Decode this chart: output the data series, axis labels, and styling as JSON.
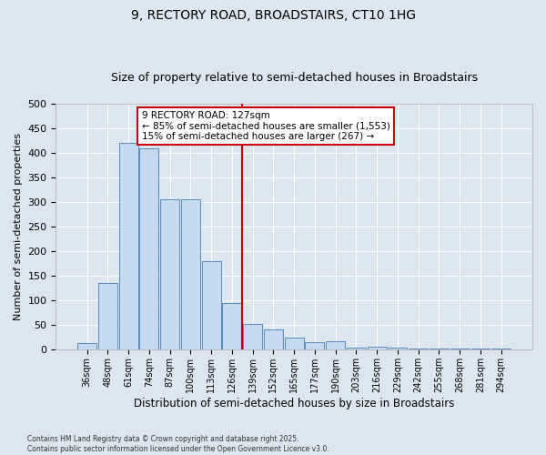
{
  "title": "9, RECTORY ROAD, BROADSTAIRS, CT10 1HG",
  "subtitle": "Size of property relative to semi-detached houses in Broadstairs",
  "xlabel": "Distribution of semi-detached houses by size in Broadstairs",
  "ylabel": "Number of semi-detached properties",
  "categories": [
    "36sqm",
    "48sqm",
    "61sqm",
    "74sqm",
    "87sqm",
    "100sqm",
    "113sqm",
    "126sqm",
    "139sqm",
    "152sqm",
    "165sqm",
    "177sqm",
    "190sqm",
    "203sqm",
    "216sqm",
    "229sqm",
    "242sqm",
    "255sqm",
    "268sqm",
    "281sqm",
    "294sqm"
  ],
  "bar_values": [
    14,
    135,
    420,
    410,
    305,
    305,
    180,
    95,
    53,
    42,
    25,
    15,
    18,
    5,
    7,
    5,
    3,
    3,
    3,
    3,
    3
  ],
  "bar_color": "#c6d9f0",
  "bar_edge_color": "#5a8ab8",
  "vline_label": "9 RECTORY ROAD: 127sqm",
  "annotation_smaller": "← 85% of semi-detached houses are smaller (1,553)",
  "annotation_larger": "15% of semi-detached houses are larger (267) →",
  "annotation_box_color": "#ffffff",
  "annotation_box_edge": "#cc0000",
  "vline_color": "#cc0000",
  "background_color": "#dce6f1",
  "plot_background": "#dce6f1",
  "footer1": "Contains HM Land Registry data © Crown copyright and database right 2025.",
  "footer2": "Contains public sector information licensed under the Open Government Licence v3.0.",
  "ylim": [
    0,
    500
  ],
  "title_fontsize": 10,
  "subtitle_fontsize": 9
}
